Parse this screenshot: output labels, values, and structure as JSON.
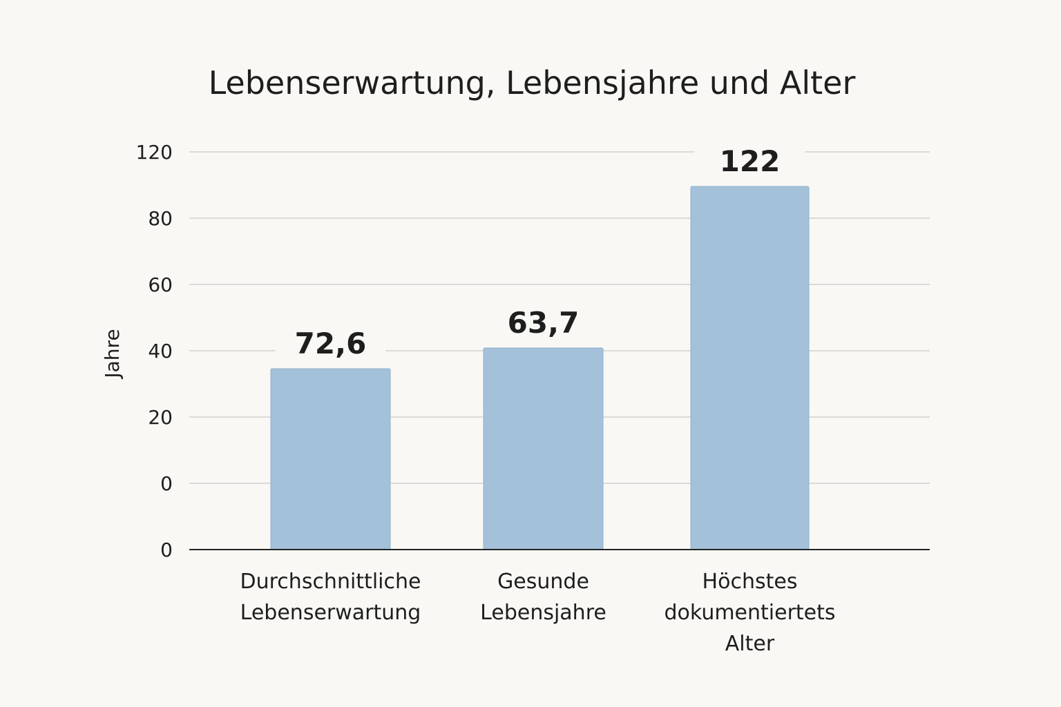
{
  "chart_data": {
    "type": "bar",
    "title": "Lebenserwartung, Lebensjahre und Alter",
    "ylabel": "Jahre",
    "xlabel": "",
    "categories": [
      [
        "Durchschnittliche",
        "Lebenserwartung"
      ],
      [
        "Gesunde",
        "Lebensjahre"
      ],
      [
        "Höchstes",
        "dokumentiertets",
        "Alter"
      ]
    ],
    "values": [
      72.6,
      63.7,
      122
    ],
    "data_labels": [
      "72,6",
      "63,7",
      "122"
    ],
    "y_tick_labels": [
      "0",
      "0",
      "20",
      "40",
      "60",
      "80",
      "120"
    ],
    "grid": true,
    "bar_color": "#a3c2da"
  }
}
